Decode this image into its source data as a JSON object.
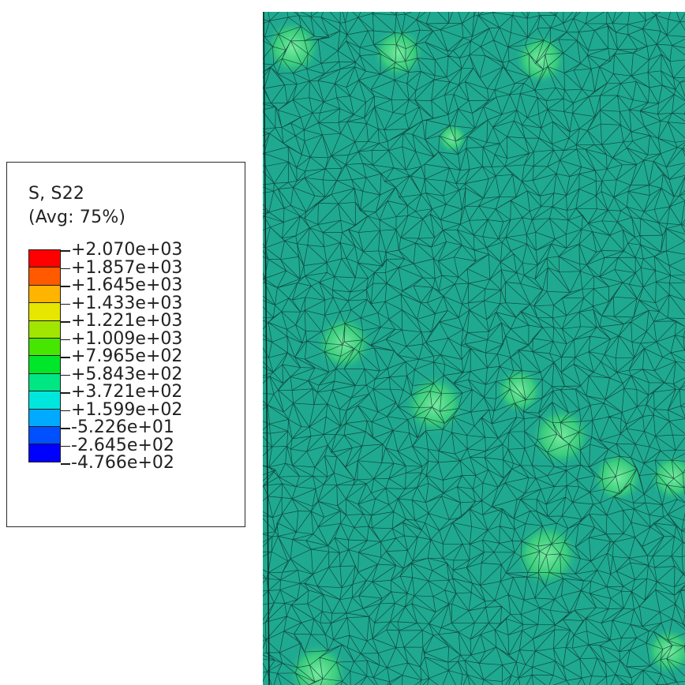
{
  "legend": {
    "title_line1": "S, S22",
    "title_line2": "(Avg: 75%)",
    "colors": [
      "#ff0000",
      "#ff5a00",
      "#ffb400",
      "#e6e600",
      "#a0e600",
      "#46e600",
      "#00e628",
      "#00e682",
      "#00e6dc",
      "#00aaff",
      "#0050ff",
      "#0000ff"
    ],
    "ticks": [
      "+2.070e+03",
      "+1.857e+03",
      "+1.645e+03",
      "+1.433e+03",
      "+1.221e+03",
      "+1.009e+03",
      "+7.965e+02",
      "+5.843e+02",
      "+3.721e+02",
      "+1.599e+02",
      "-5.226e+01",
      "-2.645e+02",
      "-4.766e+02"
    ]
  },
  "mesh": {
    "base_color": "#1fa990",
    "line_color": "#0d3a33",
    "hotspot_color": "#3ed37a"
  }
}
